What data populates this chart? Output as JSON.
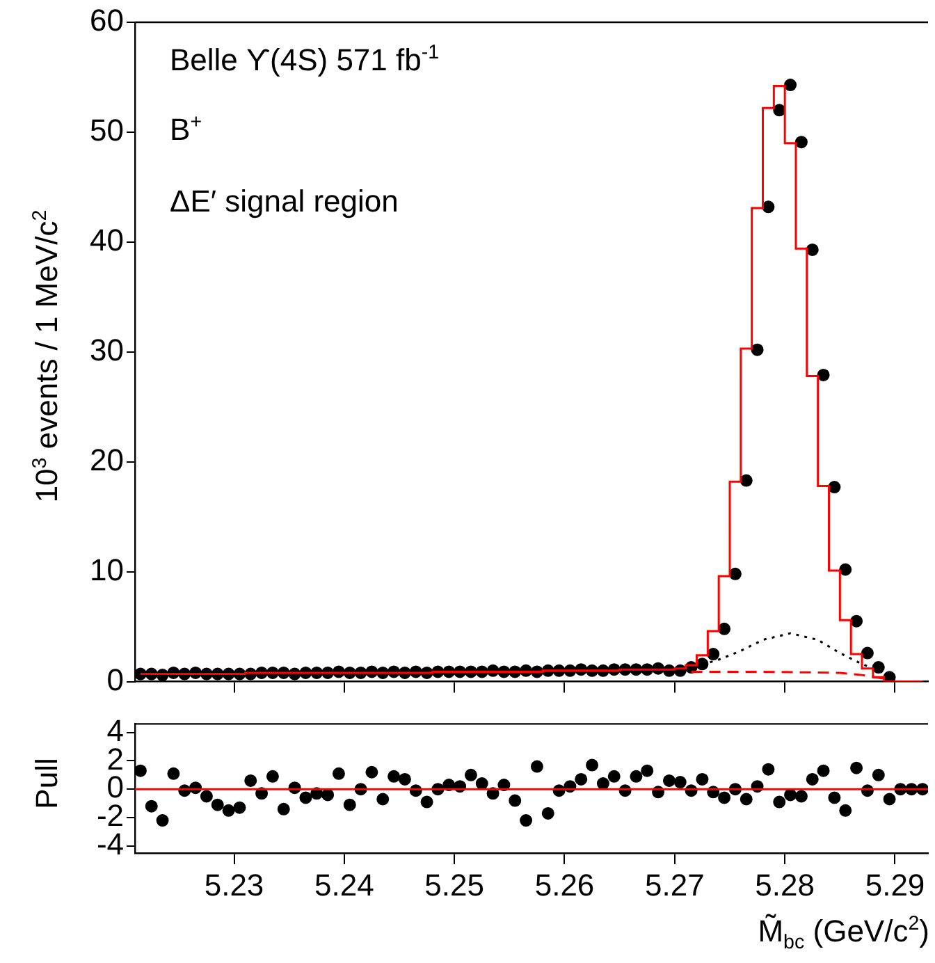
{
  "chart_data": [
    {
      "type": "scatter",
      "ylabel": "10$^{3}$ events / 1 MeV/c$^{2}$",
      "xlim": [
        5.221,
        5.293
      ],
      "xticks": [
        5.23,
        5.24,
        5.25,
        5.26,
        5.27,
        5.28,
        5.29
      ],
      "ylim": [
        0,
        60
      ],
      "yticks": [
        0,
        10,
        20,
        30,
        40,
        50,
        60
      ],
      "tick_labels": "y",
      "annotations": [
        "Belle   ϒ(4S)  571 fb$^{-1}$",
        "B$^{+}$",
        "ΔE′ signal region"
      ],
      "series": [
        {
          "type": "step",
          "color": "#ff0000",
          "line_style": "solid",
          "marker": "none",
          "x": [
            5.2215,
            5.2225,
            5.2235,
            5.2245,
            5.2255,
            5.2265,
            5.2275,
            5.2285,
            5.2295,
            5.2305,
            5.2315,
            5.2325,
            5.2335,
            5.2345,
            5.2355,
            5.2365,
            5.2375,
            5.2385,
            5.2395,
            5.2405,
            5.2415,
            5.2425,
            5.2435,
            5.2445,
            5.2455,
            5.2465,
            5.2475,
            5.2485,
            5.2495,
            5.2505,
            5.2515,
            5.2525,
            5.2535,
            5.2545,
            5.2555,
            5.2565,
            5.2575,
            5.2585,
            5.2595,
            5.2605,
            5.2615,
            5.2625,
            5.2635,
            5.2645,
            5.2655,
            5.2665,
            5.2675,
            5.2685,
            5.2695,
            5.2705,
            5.2715,
            5.2725,
            5.2735,
            5.2745,
            5.2755,
            5.2765,
            5.2775,
            5.2785,
            5.2795,
            5.2805,
            5.2815,
            5.2825,
            5.2835,
            5.2845,
            5.2855,
            5.2865,
            5.2875,
            5.2885,
            5.2895,
            5.2905,
            5.2915,
            5.2925
          ],
          "values": [
            0.7,
            0.7,
            0.7,
            0.7,
            0.7,
            0.7,
            0.7,
            0.7,
            0.7,
            0.7,
            0.8,
            0.8,
            0.8,
            0.8,
            0.8,
            0.8,
            0.8,
            0.8,
            0.8,
            0.8,
            0.8,
            0.8,
            0.8,
            0.8,
            0.8,
            0.8,
            0.8,
            0.9,
            0.9,
            0.9,
            0.9,
            0.9,
            0.9,
            0.9,
            0.9,
            0.9,
            0.9,
            1.0,
            1.0,
            1.0,
            1.0,
            1.0,
            1.0,
            1.0,
            1.1,
            1.1,
            1.1,
            1.1,
            1.1,
            1.2,
            1.5,
            2.4,
            4.6,
            9.6,
            18.2,
            30.3,
            43.1,
            52.2,
            54.2,
            49.0,
            39.4,
            27.8,
            17.8,
            10.1,
            5.6,
            2.5,
            1.2,
            0.4,
            0,
            0,
            0,
            0
          ]
        },
        {
          "type": "line",
          "color": "#000000",
          "line_style": "dotted",
          "marker": "none",
          "x": [
            5.2695,
            5.272,
            5.274,
            5.276,
            5.278,
            5.2805,
            5.283,
            5.285,
            5.287,
            5.2895
          ],
          "values": [
            1.0,
            1.4,
            2.0,
            2.8,
            3.8,
            4.4,
            3.8,
            2.6,
            1.6,
            0.6
          ]
        },
        {
          "type": "line",
          "color": "#ff0000",
          "line_style": "dashed",
          "marker": "none",
          "x": [
            5.2715,
            5.278,
            5.285,
            5.287,
            5.2895
          ],
          "values": [
            0.9,
            0.9,
            0.8,
            0.6,
            0.2
          ]
        },
        {
          "type": "scatter",
          "color": "#000000",
          "marker": "circle",
          "x": [
            5.2215,
            5.2225,
            5.2235,
            5.2245,
            5.2255,
            5.2265,
            5.2275,
            5.2285,
            5.2295,
            5.2305,
            5.2315,
            5.2325,
            5.2335,
            5.2345,
            5.2355,
            5.2365,
            5.2375,
            5.2385,
            5.2395,
            5.2405,
            5.2415,
            5.2425,
            5.2435,
            5.2445,
            5.2455,
            5.2465,
            5.2475,
            5.2485,
            5.2495,
            5.2505,
            5.2515,
            5.2525,
            5.2535,
            5.2545,
            5.2555,
            5.2565,
            5.2575,
            5.2585,
            5.2595,
            5.2605,
            5.2615,
            5.2625,
            5.2635,
            5.2645,
            5.2655,
            5.2665,
            5.2675,
            5.2685,
            5.2695,
            5.2705,
            5.2715,
            5.2725,
            5.2735,
            5.2745,
            5.2755,
            5.2765,
            5.2775,
            5.2785,
            5.2795,
            5.2805,
            5.2815,
            5.2825,
            5.2835,
            5.2845,
            5.2855,
            5.2865,
            5.2875,
            5.2885,
            5.2895
          ],
          "values": [
            0.7,
            0.7,
            0.6,
            0.8,
            0.7,
            0.8,
            0.7,
            0.7,
            0.7,
            0.7,
            0.7,
            0.8,
            0.8,
            0.8,
            0.7,
            0.8,
            0.8,
            0.8,
            0.9,
            0.8,
            0.8,
            0.9,
            0.8,
            0.9,
            0.8,
            0.9,
            0.8,
            0.9,
            0.9,
            0.9,
            0.9,
            0.9,
            1.0,
            0.9,
            0.9,
            1.0,
            0.9,
            1.0,
            1.0,
            1.0,
            1.1,
            1.0,
            1.0,
            1.1,
            1.1,
            1.1,
            1.1,
            1.2,
            1.0,
            1.0,
            1.3,
            1.6,
            2.5,
            4.8,
            9.8,
            18.3,
            30.2,
            43.2,
            52.0,
            54.3,
            49.1,
            39.3,
            27.9,
            17.7,
            10.2,
            5.5,
            2.6,
            1.3,
            0.4
          ]
        }
      ]
    },
    {
      "type": "scatter",
      "ylabel": "Pull",
      "xlabel": "M̃$_{bc}$ (GeV/c$^{2}$)",
      "xlim": [
        5.221,
        5.293
      ],
      "xticks": [
        5.23,
        5.24,
        5.25,
        5.26,
        5.27,
        5.28,
        5.29
      ],
      "ylim": [
        -4.5,
        4.6
      ],
      "yticks": [
        -4,
        -2,
        0,
        2,
        4
      ],
      "marker": "circle",
      "ref_lines": [
        {
          "axis": "y",
          "value": 0,
          "color": "#ff0000"
        }
      ],
      "series": [
        {
          "color": "#000000",
          "x": [
            5.2215,
            5.2225,
            5.2235,
            5.2245,
            5.2255,
            5.2265,
            5.2275,
            5.2285,
            5.2295,
            5.2305,
            5.2315,
            5.2325,
            5.2335,
            5.2345,
            5.2355,
            5.2365,
            5.2375,
            5.2385,
            5.2395,
            5.2405,
            5.2415,
            5.2425,
            5.2435,
            5.2445,
            5.2455,
            5.2465,
            5.2475,
            5.2485,
            5.2495,
            5.2505,
            5.2515,
            5.2525,
            5.2535,
            5.2545,
            5.2555,
            5.2565,
            5.2575,
            5.2585,
            5.2595,
            5.2605,
            5.2615,
            5.2625,
            5.2635,
            5.2645,
            5.2655,
            5.2665,
            5.2675,
            5.2685,
            5.2695,
            5.2705,
            5.2715,
            5.2725,
            5.2735,
            5.2745,
            5.2755,
            5.2765,
            5.2775,
            5.2785,
            5.2795,
            5.2805,
            5.2815,
            5.2825,
            5.2835,
            5.2845,
            5.2855,
            5.2865,
            5.2875,
            5.2885,
            5.2895,
            5.2905,
            5.2915,
            5.2925
          ],
          "values": [
            1.3,
            -1.2,
            -2.2,
            1.1,
            -0.1,
            0.1,
            -0.5,
            -1.1,
            -1.5,
            -1.3,
            0.6,
            -0.3,
            0.9,
            -1.4,
            0.1,
            -0.6,
            -0.3,
            -0.4,
            1.1,
            -1.1,
            0.0,
            1.2,
            -0.7,
            0.9,
            0.7,
            -0.1,
            -0.9,
            0.0,
            0.3,
            0.2,
            1.0,
            0.4,
            -0.3,
            0.3,
            -0.8,
            -2.2,
            1.6,
            -1.7,
            -0.1,
            0.2,
            0.7,
            1.7,
            0.4,
            0.9,
            -0.1,
            0.9,
            1.3,
            -0.2,
            0.6,
            0.5,
            -0.1,
            0.7,
            -0.2,
            -0.6,
            0.0,
            -0.7,
            0.2,
            1.4,
            -0.9,
            -0.4,
            -0.5,
            0.7,
            1.3,
            -0.6,
            -1.5,
            1.5,
            -0.1,
            1.0,
            -0.7,
            0.0,
            0.0,
            0.0
          ]
        }
      ]
    }
  ]
}
